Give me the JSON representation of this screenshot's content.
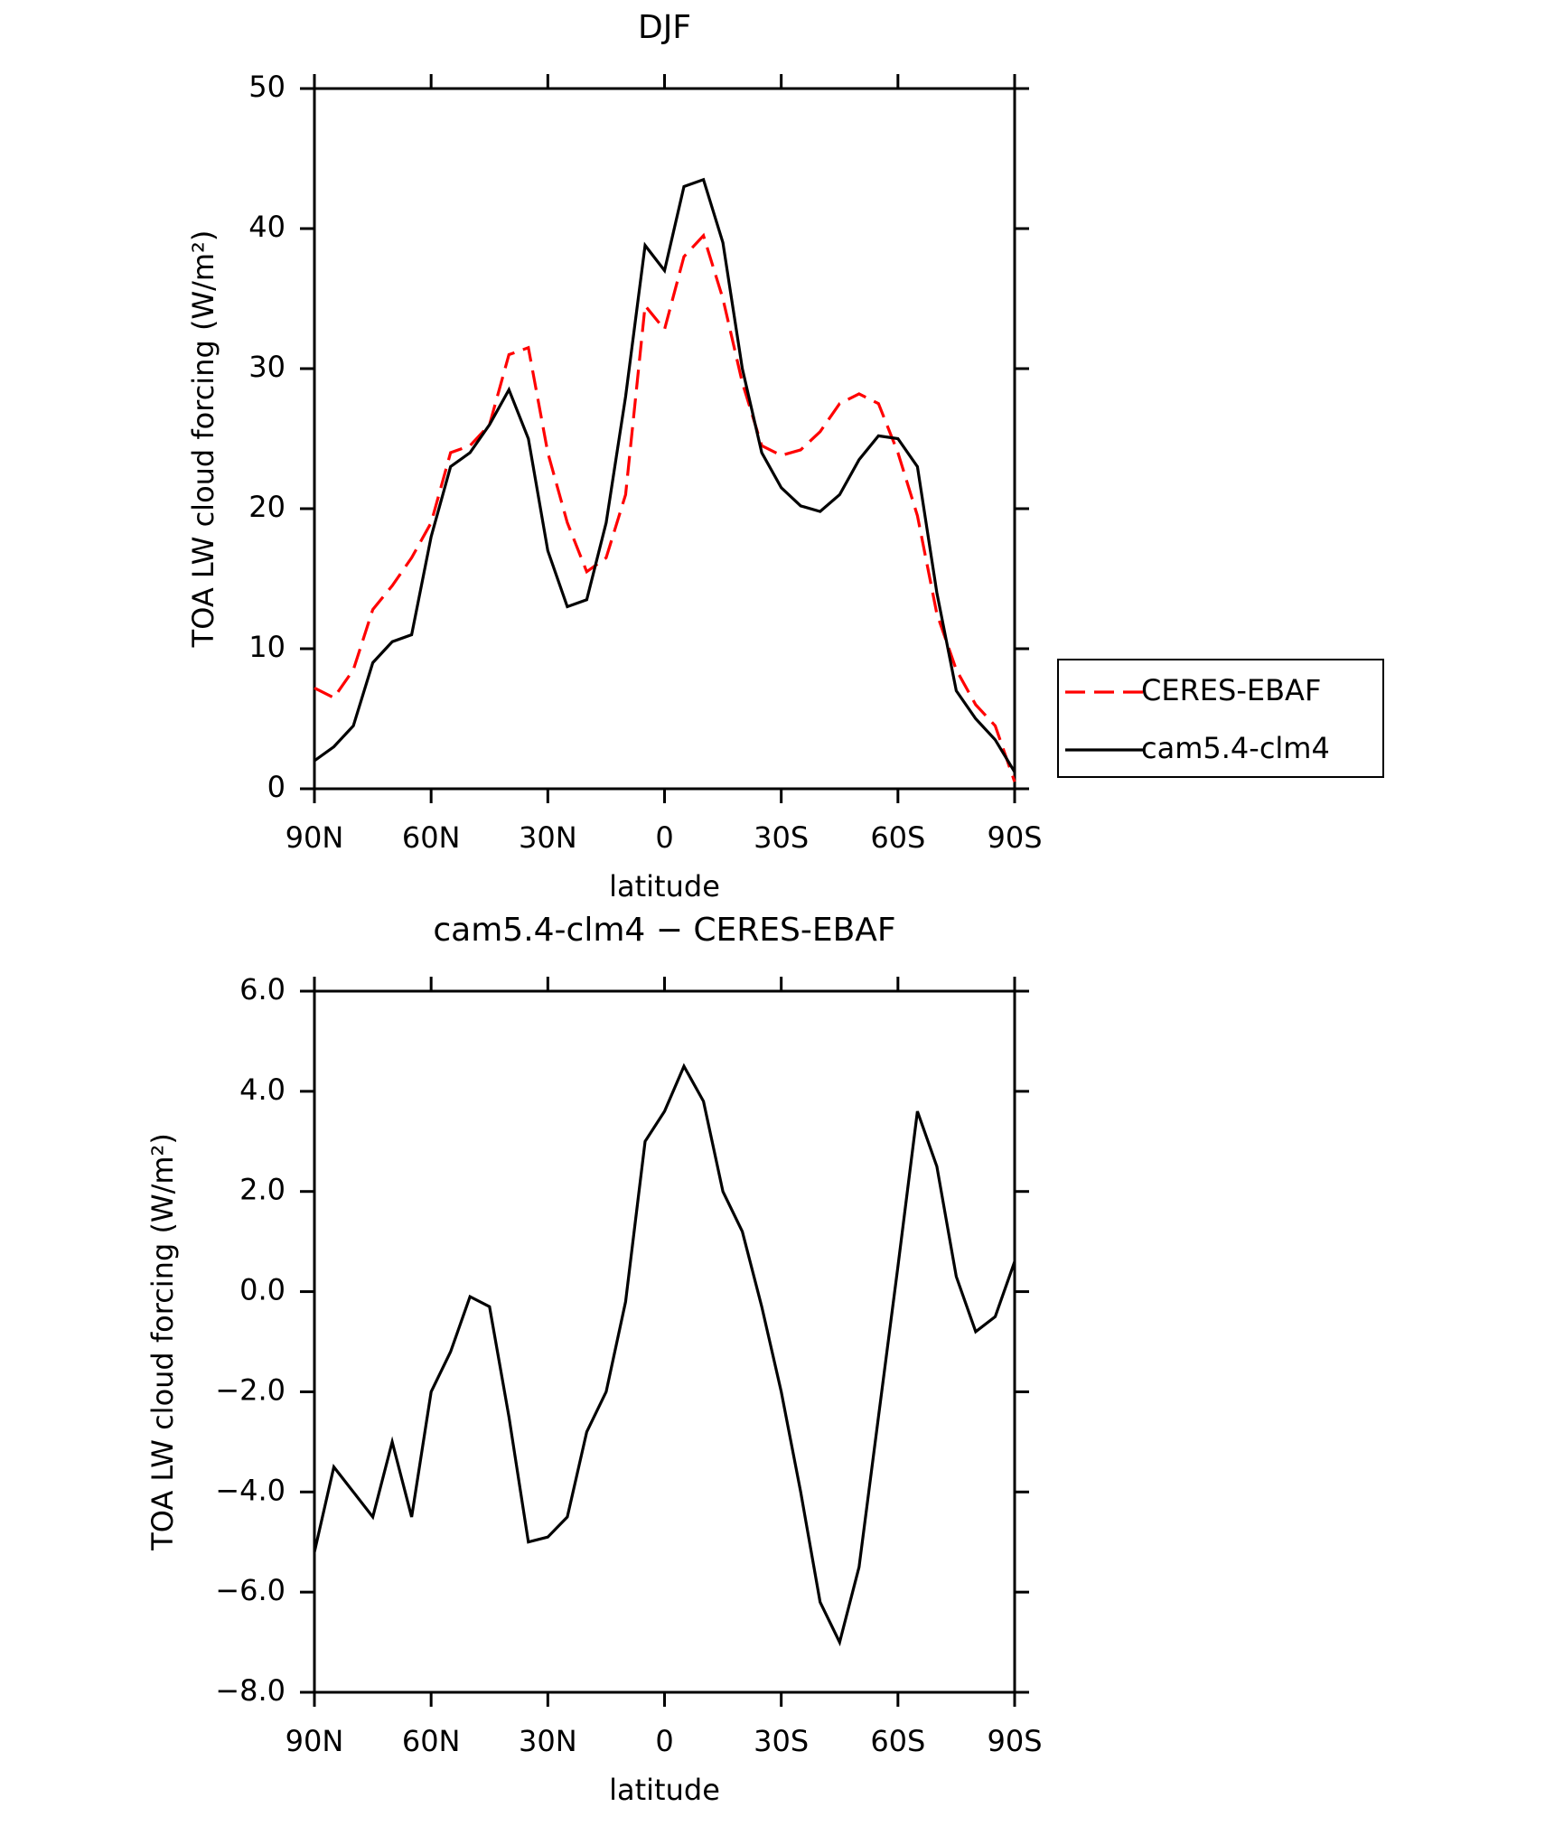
{
  "chart_data": [
    {
      "type": "line",
      "title": "DJF",
      "xlabel": "latitude",
      "ylabel": "TOA LW cloud forcing (W/m²)",
      "x": [
        90,
        85,
        80,
        75,
        70,
        65,
        60,
        55,
        50,
        45,
        40,
        35,
        30,
        25,
        20,
        15,
        10,
        5,
        0,
        -5,
        -10,
        -15,
        -20,
        -25,
        -30,
        -35,
        -40,
        -45,
        -50,
        -55,
        -60,
        -65,
        -70,
        -75,
        -80,
        -85,
        -90
      ],
      "series": [
        {
          "name": "CERES-EBAF",
          "color": "#ff0000",
          "dash": true,
          "values": [
            7.2,
            6.5,
            8.5,
            12.8,
            14.5,
            16.5,
            19,
            24,
            24.5,
            26,
            31,
            31.5,
            24,
            19,
            15.5,
            16.5,
            21,
            34.5,
            32.8,
            38,
            39.5,
            35,
            29,
            24.5,
            23.8,
            24.2,
            25.5,
            27.5,
            28.2,
            27.5,
            24,
            19.5,
            12.5,
            8.5,
            6,
            4.5,
            0.5
          ]
        },
        {
          "name": "cam5.4-clm4",
          "color": "#000000",
          "dash": false,
          "values": [
            2,
            3,
            4.5,
            9,
            10.5,
            11,
            18,
            23,
            24,
            26,
            28.5,
            25,
            17,
            13,
            13.5,
            19,
            28,
            38.8,
            37,
            43,
            43.5,
            39,
            30,
            24,
            21.5,
            20.2,
            19.8,
            21,
            23.5,
            25.2,
            25,
            23,
            14,
            7,
            5,
            3.5,
            1.2
          ]
        }
      ],
      "xlim": [
        90,
        -90
      ],
      "xticks": [
        {
          "value": 90,
          "label": "90N"
        },
        {
          "value": 60,
          "label": "60N"
        },
        {
          "value": 30,
          "label": "30N"
        },
        0,
        {
          "value": -30,
          "label": "30S"
        },
        {
          "value": -60,
          "label": "60S"
        },
        {
          "value": -90,
          "label": "90S"
        }
      ],
      "ylim": [
        0,
        50
      ],
      "yticks": [
        0,
        10,
        20,
        30,
        40,
        50
      ],
      "legend": "outside right"
    },
    {
      "type": "line",
      "title": "cam5.4-clm4 − CERES-EBAF",
      "xlabel": "latitude",
      "ylabel": "TOA LW cloud forcing (W/m²)",
      "x": [
        90,
        85,
        80,
        75,
        70,
        65,
        60,
        55,
        50,
        45,
        40,
        35,
        30,
        25,
        20,
        15,
        10,
        5,
        0,
        -5,
        -10,
        -15,
        -20,
        -25,
        -30,
        -35,
        -40,
        -45,
        -50,
        -55,
        -60,
        -65,
        -70,
        -75,
        -80,
        -85,
        -90
      ],
      "series": [
        {
          "color": "#000000",
          "dash": false,
          "values": [
            -5.2,
            -3.5,
            -4.0,
            -4.5,
            -3.0,
            -4.5,
            -2.0,
            -1.2,
            -0.1,
            -0.3,
            -2.5,
            -5.0,
            -4.9,
            -4.5,
            -2.8,
            -2.0,
            -0.2,
            3.0,
            3.6,
            4.5,
            3.8,
            2.0,
            1.2,
            -0.3,
            -2.0,
            -4.0,
            -6.2,
            -7.0,
            -5.5,
            -2.5,
            0.5,
            3.6,
            2.5,
            0.3,
            -0.8,
            -0.5,
            0.6
          ]
        }
      ],
      "xlim": [
        90,
        -90
      ],
      "xticks": [
        {
          "value": 90,
          "label": "90N"
        },
        {
          "value": 60,
          "label": "60N"
        },
        {
          "value": 30,
          "label": "30N"
        },
        0,
        {
          "value": -30,
          "label": "30S"
        },
        {
          "value": -60,
          "label": "60S"
        },
        {
          "value": -90,
          "label": "90S"
        }
      ],
      "ylim": [
        -8,
        6
      ],
      "yticks": [
        {
          "value": -8,
          "label": "−8.0"
        },
        {
          "value": -6,
          "label": "−6.0"
        },
        {
          "value": -4,
          "label": "−4.0"
        },
        {
          "value": -2,
          "label": "−2.0"
        },
        {
          "value": 0,
          "label": "0.0"
        },
        {
          "value": 2,
          "label": "2.0"
        },
        {
          "value": 4,
          "label": "4.0"
        },
        {
          "value": 6,
          "label": "6.0"
        }
      ]
    }
  ]
}
